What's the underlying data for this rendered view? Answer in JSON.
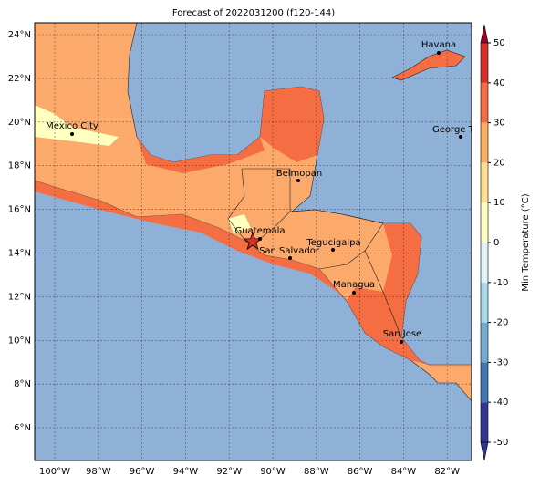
{
  "title": "Forecast of 2022031200 (f120-144)",
  "lat_labels": [
    "24°N",
    "22°N",
    "20°N",
    "18°N",
    "16°N",
    "14°N",
    "12°N",
    "10°N",
    "8°N",
    "6°N"
  ],
  "lon_labels": [
    "100°W",
    "98°W",
    "96°W",
    "94°W",
    "92°W",
    "90°W",
    "88°W",
    "86°W",
    "84°W",
    "82°W"
  ],
  "cities": [
    {
      "name": "Havana"
    },
    {
      "name": "Mexico City"
    },
    {
      "name": "George Town"
    },
    {
      "name": "Belmopan"
    },
    {
      "name": "Guatemala"
    },
    {
      "name": "San Salvador"
    },
    {
      "name": "Tegucigalpa"
    },
    {
      "name": "Managua"
    },
    {
      "name": "San Jose"
    }
  ],
  "colorbar": {
    "label": "Min Temperature (°C)",
    "lim": [
      -50,
      50
    ],
    "ticks": [
      -50,
      -40,
      -30,
      -20,
      -10,
      0,
      10,
      20,
      30,
      40,
      50
    ],
    "colors": [
      "#313695",
      "#4575b4",
      "#74add1",
      "#abd9e9",
      "#e0f3f8",
      "#ffffbf",
      "#fee090",
      "#fdae61",
      "#f46d43",
      "#d73027",
      "#a50026"
    ]
  }
}
